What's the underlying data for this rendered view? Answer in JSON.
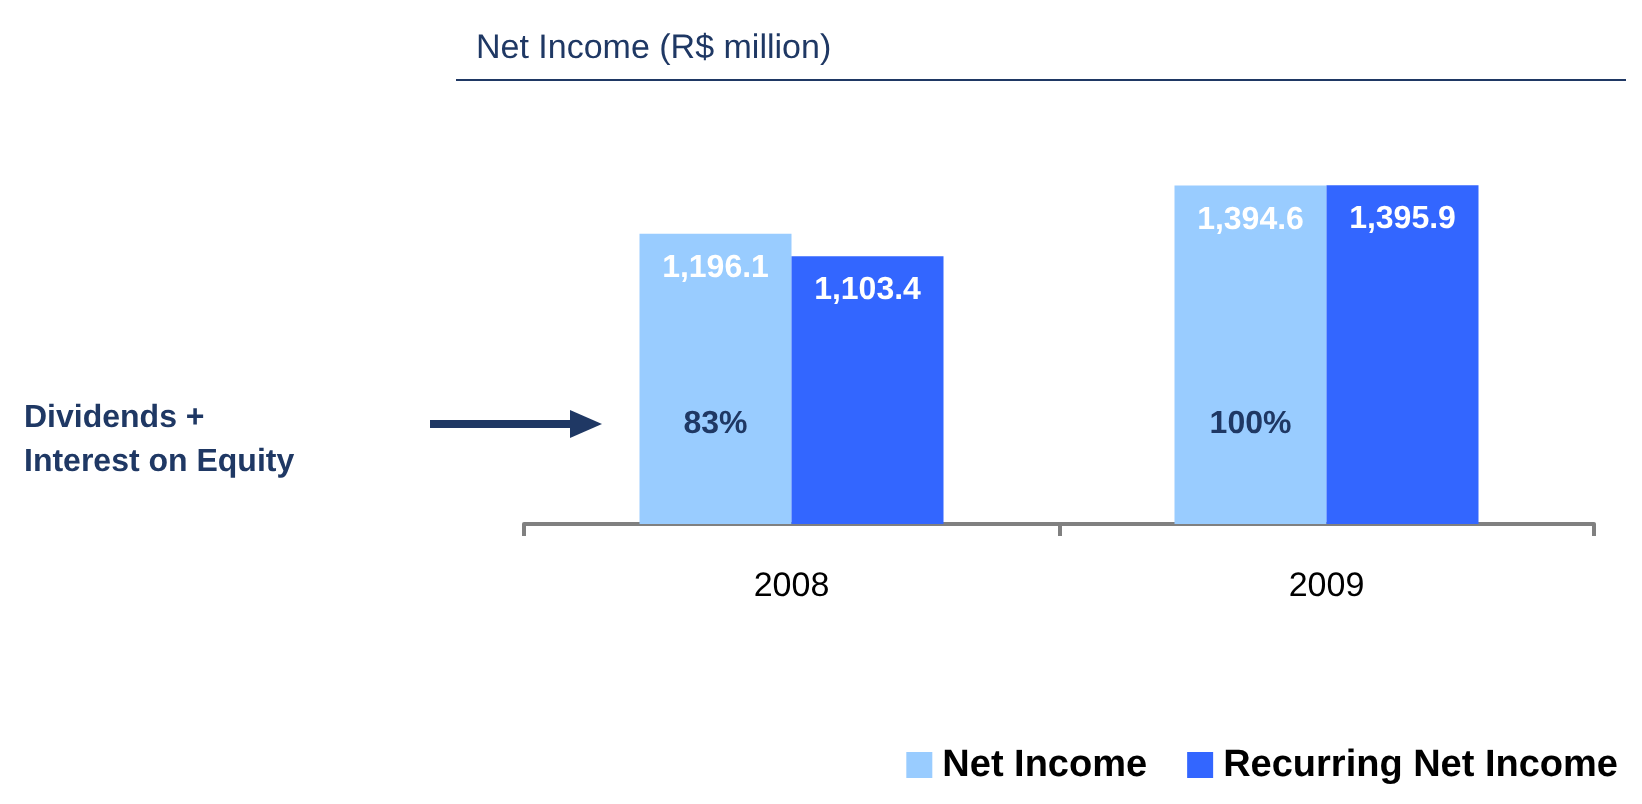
{
  "chart_data": {
    "type": "bar",
    "title": "Net Income (R$ million)",
    "categories": [
      "2008",
      "2009"
    ],
    "series": [
      {
        "name": "Net Income",
        "color": "#99ccff",
        "values": [
          1196.1,
          1394.6
        ],
        "value_labels": [
          "1,196.1",
          "1,394.6"
        ]
      },
      {
        "name": "Recurring Net Income",
        "color": "#3366ff",
        "values": [
          1103.4,
          1395.9
        ],
        "value_labels": [
          "1,103.4",
          "1,395.9"
        ]
      }
    ],
    "tick_labels": "x",
    "legend": "bottom right",
    "annotations": [
      "Dividends + Interest on Equity",
      {
        "text": "83%",
        "x": "2008"
      },
      {
        "text": "100%",
        "x": "2009"
      }
    ]
  }
}
